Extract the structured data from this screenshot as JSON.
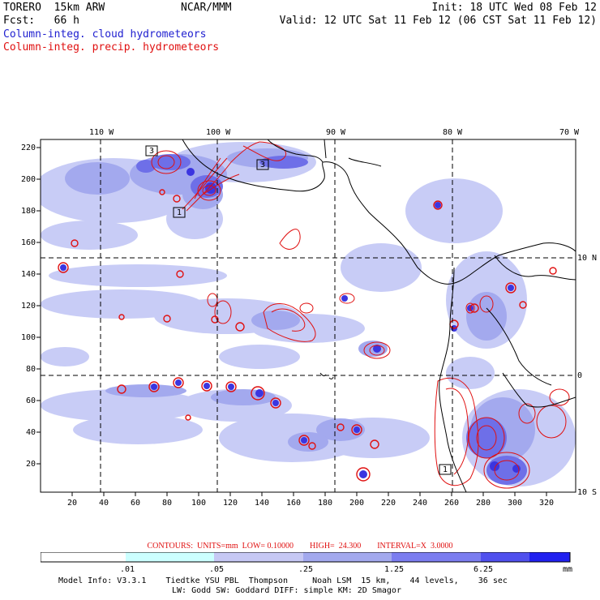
{
  "header": {
    "model": "TORERO  15km ARW",
    "org": "NCAR/MMM",
    "init": "Init: 18 UTC Wed 08 Feb 12",
    "fcst": "Fcst:   66 h",
    "valid": "Valid: 12 UTC Sat 11 Feb 12 (06 CST Sat 11 Feb 12)",
    "field1": "Column-integ. cloud hydrometeors",
    "field2": "Column-integ. precip. hydrometeors"
  },
  "map": {
    "top_lon_labels": [
      "110 W",
      "100 W",
      "90 W",
      "80 W",
      "70 W"
    ],
    "right_lat_labels": [
      "10 N",
      "0",
      "10 S"
    ],
    "y_ticks": [
      "220",
      "200",
      "180",
      "160",
      "140",
      "120",
      "100",
      "80",
      "60",
      "40",
      "20"
    ],
    "x_ticks": [
      "20",
      "40",
      "60",
      "80",
      "100",
      "120",
      "140",
      "160",
      "180",
      "200",
      "220",
      "240",
      "260",
      "280",
      "300",
      "320"
    ],
    "box_labels": [
      "3",
      "3",
      "1",
      "1"
    ],
    "colors": {
      "cloud_light": "#c8ccf6",
      "cloud_mid": "#a3a9ee",
      "cloud_dark": "#6e6fe8",
      "cloud_deep": "#3b35e0",
      "contour": "#e01010",
      "land": "#000000"
    }
  },
  "contours_line": "CONTOURS:  UNITS=mm  LOW= 0.10000        HIGH=  24.300        INTERVAL=X  3.0000",
  "colorbar": {
    "labels": [
      ".01",
      ".05",
      ".25",
      "1.25",
      "6.25"
    ],
    "unit": "mm",
    "colors": [
      "#ffffff",
      "#ccffff",
      "#c6c8f4",
      "#a3a9ee",
      "#7b7df0",
      "#5050ee",
      "#2020f0"
    ]
  },
  "model_info": {
    "line1": "Model Info: V3.3.1    Tiedtke YSU PBL  Thompson     Noah LSM  15 km,    44 levels,    36 sec",
    "line2": "LW: Godd SW: Goddard DIFF: simple KM: 2D Smagor"
  }
}
